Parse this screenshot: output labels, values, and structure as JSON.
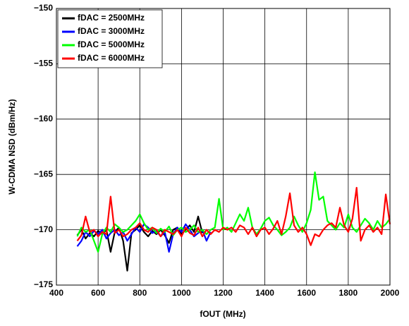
{
  "chart_data": {
    "type": "line",
    "x_label": "fOUT (MHz)",
    "y_label": "W-CDMA NSD (dBm/Hz)",
    "xlim": [
      400,
      2000
    ],
    "xticks": [
      400,
      600,
      800,
      1000,
      1200,
      1400,
      1600,
      1800,
      2000
    ],
    "ylim": [
      -175,
      -150
    ],
    "yticks": [
      {
        "value": -175,
        "label": "−175"
      },
      {
        "value": -170,
        "label": "−170"
      },
      {
        "value": -165,
        "label": "−165"
      },
      {
        "value": -160,
        "label": "−160"
      },
      {
        "value": -155,
        "label": "−155"
      },
      {
        "value": -150,
        "label": "−150"
      }
    ],
    "grid": true,
    "legend": "upper left",
    "series": [
      {
        "name": "fDAC = 2500MHz",
        "color": "#000000",
        "x": [
          500,
          520,
          540,
          560,
          580,
          600,
          620,
          640,
          660,
          680,
          700,
          720,
          740,
          760,
          780,
          800,
          820,
          840,
          860,
          880,
          900,
          920,
          940,
          960,
          980,
          1000,
          1020,
          1040,
          1060,
          1080,
          1100
        ],
        "values": [
          -170.5,
          -170.0,
          -170.8,
          -170.3,
          -170.6,
          -170.1,
          -170.4,
          -170.0,
          -172.0,
          -170.2,
          -169.8,
          -171.0,
          -173.7,
          -170.3,
          -170.0,
          -169.6,
          -170.2,
          -170.6,
          -170.1,
          -170.4,
          -170.0,
          -170.5,
          -171.2,
          -170.0,
          -169.8,
          -170.4,
          -170.0,
          -169.6,
          -170.2,
          -168.8,
          -170.3
        ]
      },
      {
        "name": "fDAC = 3000MHz",
        "color": "#0000ff",
        "x": [
          500,
          520,
          540,
          560,
          580,
          600,
          620,
          640,
          660,
          680,
          700,
          720,
          740,
          760,
          780,
          800,
          820,
          840,
          860,
          880,
          900,
          920,
          940,
          960,
          980,
          1000,
          1020,
          1040,
          1060,
          1080,
          1100,
          1120,
          1140
        ],
        "values": [
          -171.5,
          -171.0,
          -170.2,
          -170.6,
          -170.1,
          -170.4,
          -170.0,
          -170.8,
          -170.3,
          -170.0,
          -170.5,
          -170.2,
          -171.0,
          -170.4,
          -169.8,
          -170.2,
          -169.5,
          -169.8,
          -170.3,
          -170.1,
          -170.6,
          -170.2,
          -172.0,
          -170.4,
          -169.8,
          -170.2,
          -169.5,
          -170.0,
          -170.6,
          -170.3,
          -170.0,
          -171.0,
          -170.2
        ]
      },
      {
        "name": "fDAC = 5000MHz",
        "color": "#00ff00",
        "x": [
          500,
          520,
          540,
          560,
          580,
          600,
          620,
          640,
          660,
          680,
          700,
          720,
          740,
          760,
          780,
          800,
          820,
          840,
          860,
          880,
          900,
          920,
          940,
          960,
          980,
          1000,
          1020,
          1040,
          1060,
          1080,
          1100,
          1120,
          1140,
          1160,
          1180,
          1200,
          1220,
          1240,
          1260,
          1280,
          1300,
          1320,
          1340,
          1360,
          1380,
          1400,
          1420,
          1440,
          1460,
          1480,
          1500,
          1520,
          1540,
          1560,
          1580,
          1600,
          1620,
          1640,
          1660,
          1680,
          1700,
          1720,
          1740,
          1760,
          1780,
          1800,
          1820,
          1840,
          1860,
          1880,
          1900,
          1920,
          1940,
          1960,
          1980,
          2000
        ],
        "values": [
          -170.6,
          -169.8,
          -170.2,
          -170.0,
          -171.0,
          -172.0,
          -170.4,
          -169.8,
          -170.2,
          -169.5,
          -169.8,
          -170.2,
          -170.0,
          -169.6,
          -169.2,
          -168.6,
          -169.4,
          -170.0,
          -169.8,
          -170.3,
          -169.9,
          -170.2,
          -169.7,
          -170.5,
          -170.0,
          -169.8,
          -170.2,
          -170.0,
          -169.6,
          -170.2,
          -170.0,
          -170.4,
          -170.0,
          -169.8,
          -167.2,
          -170.0,
          -169.8,
          -170.2,
          -169.4,
          -168.6,
          -169.2,
          -168.0,
          -169.8,
          -170.4,
          -169.9,
          -169.2,
          -168.9,
          -169.6,
          -170.0,
          -170.5,
          -170.2,
          -169.8,
          -168.8,
          -169.6,
          -170.2,
          -169.4,
          -168.2,
          -164.8,
          -167.3,
          -167.0,
          -169.2,
          -169.6,
          -170.0,
          -169.4,
          -169.8,
          -168.6,
          -169.8,
          -170.2,
          -169.6,
          -169.0,
          -169.4,
          -170.0,
          -169.2,
          -169.8,
          -169.5,
          -169.0
        ]
      },
      {
        "name": "fDAC = 6000MHz",
        "color": "#ff0000",
        "x": [
          500,
          520,
          540,
          560,
          580,
          600,
          620,
          640,
          660,
          680,
          700,
          720,
          740,
          760,
          780,
          800,
          820,
          840,
          860,
          880,
          900,
          920,
          940,
          960,
          980,
          1000,
          1020,
          1040,
          1060,
          1080,
          1100,
          1120,
          1140,
          1160,
          1180,
          1200,
          1220,
          1240,
          1260,
          1280,
          1300,
          1320,
          1340,
          1360,
          1380,
          1400,
          1420,
          1440,
          1460,
          1480,
          1500,
          1520,
          1540,
          1560,
          1580,
          1600,
          1620,
          1640,
          1660,
          1680,
          1700,
          1720,
          1740,
          1760,
          1780,
          1800,
          1820,
          1840,
          1860,
          1880,
          1900,
          1920,
          1940,
          1960,
          1980,
          2000
        ],
        "values": [
          -171.0,
          -170.5,
          -168.8,
          -170.2,
          -170.0,
          -170.6,
          -170.2,
          -170.4,
          -167.0,
          -170.3,
          -170.0,
          -170.6,
          -170.4,
          -170.0,
          -169.8,
          -169.4,
          -170.0,
          -170.2,
          -169.8,
          -170.0,
          -170.6,
          -170.0,
          -170.2,
          -170.4,
          -170.0,
          -170.6,
          -169.8,
          -170.3,
          -170.5,
          -169.8,
          -170.6,
          -170.0,
          -170.4,
          -170.0,
          -170.2,
          -169.8,
          -170.0,
          -169.8,
          -170.2,
          -169.6,
          -169.8,
          -170.4,
          -169.8,
          -170.6,
          -170.0,
          -169.8,
          -170.4,
          -169.9,
          -169.2,
          -170.4,
          -168.8,
          -166.7,
          -169.6,
          -170.2,
          -169.8,
          -170.4,
          -171.4,
          -170.4,
          -170.6,
          -170.0,
          -169.6,
          -169.4,
          -169.8,
          -168.0,
          -169.6,
          -170.2,
          -169.0,
          -166.2,
          -171.0,
          -170.0,
          -169.6,
          -170.2,
          -169.8,
          -170.4,
          -166.8,
          -169.5
        ]
      }
    ]
  }
}
